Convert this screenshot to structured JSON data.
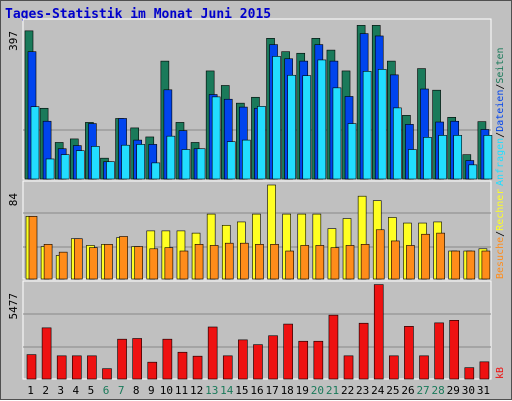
{
  "title": "Tages-Statistik im Monat Juni 2015",
  "colors": {
    "anfragen": "#1a7a5a",
    "dateien": "#0044ee",
    "seiten": "#22ddff",
    "besuche": "#ffff22",
    "rechner": "#ff8c1a",
    "kb": "#ee1111",
    "weekend": "#1a7a5a",
    "weekday": "#000000"
  },
  "chart_data": [
    {
      "type": "bar",
      "ymax_label": "397",
      "categories": [
        "1",
        "2",
        "3",
        "4",
        "5",
        "6",
        "7",
        "8",
        "9",
        "10",
        "11",
        "12",
        "13",
        "14",
        "15",
        "16",
        "17",
        "18",
        "19",
        "20",
        "21",
        "22",
        "23",
        "24",
        "25",
        "26",
        "27",
        "28",
        "29",
        "30",
        "31"
      ],
      "ylim": [
        0,
        397
      ],
      "series": [
        {
          "name": "Anfragen",
          "values": [
            377,
            180,
            93,
            102,
            144,
            53,
            154,
            130,
            107,
            300,
            144,
            93,
            275,
            238,
            193,
            208,
            358,
            324,
            320,
            358,
            328,
            275,
            391,
            391,
            300,
            162,
            281,
            226,
            157,
            62,
            146
          ]
        },
        {
          "name": "Dateien",
          "values": [
            324,
            147,
            77,
            85,
            141,
            44,
            154,
            99,
            88,
            227,
            123,
            77,
            215,
            203,
            183,
            180,
            342,
            306,
            300,
            342,
            300,
            210,
            370,
            364,
            265,
            139,
            229,
            145,
            147,
            47,
            126
          ]
        },
        {
          "name": "Seiten",
          "values": [
            184,
            51,
            62,
            72,
            83,
            44,
            86,
            88,
            41,
            109,
            75,
            77,
            209,
            95,
            99,
            185,
            312,
            264,
            263,
            303,
            232,
            141,
            274,
            279,
            181,
            75,
            106,
            111,
            111,
            36,
            111
          ]
        }
      ]
    },
    {
      "type": "bar",
      "ymax_label": "84",
      "categories": [
        "1",
        "2",
        "3",
        "4",
        "5",
        "6",
        "7",
        "8",
        "9",
        "10",
        "11",
        "12",
        "13",
        "14",
        "15",
        "16",
        "17",
        "18",
        "19",
        "20",
        "21",
        "22",
        "23",
        "24",
        "25",
        "26",
        "27",
        "28",
        "29",
        "30",
        "31"
      ],
      "ylim": [
        0,
        84
      ],
      "series": [
        {
          "name": "Besuche",
          "values": [
            56,
            29,
            21,
            36,
            30,
            31,
            37,
            29,
            43,
            43,
            43,
            41,
            58,
            48,
            51,
            58,
            84,
            58,
            58,
            58,
            45,
            54,
            74,
            70,
            55,
            50,
            50,
            51,
            25,
            25,
            27
          ]
        },
        {
          "name": "Rechner",
          "values": [
            56,
            31,
            24,
            36,
            28,
            31,
            38,
            29,
            27,
            28,
            25,
            31,
            30,
            32,
            32,
            31,
            31,
            25,
            30,
            30,
            28,
            30,
            31,
            44,
            34,
            30,
            40,
            41,
            25,
            25,
            25
          ]
        }
      ]
    },
    {
      "type": "bar",
      "ymax_label": "5477",
      "categories": [
        "1",
        "2",
        "3",
        "4",
        "5",
        "6",
        "7",
        "8",
        "9",
        "10",
        "11",
        "12",
        "13",
        "14",
        "15",
        "16",
        "17",
        "18",
        "19",
        "20",
        "21",
        "22",
        "23",
        "24",
        "25",
        "26",
        "27",
        "28",
        "29",
        "30",
        "31"
      ],
      "ylim": [
        0,
        5477
      ],
      "series": [
        {
          "name": "kB",
          "values": [
            1420,
            2980,
            1350,
            1350,
            1350,
            600,
            2320,
            2360,
            980,
            2320,
            1560,
            1330,
            3030,
            1350,
            2280,
            2000,
            2520,
            3200,
            2200,
            2200,
            3720,
            1350,
            3250,
            5500,
            1350,
            3070,
            1350,
            3270,
            3420,
            660,
            1000
          ]
        }
      ]
    }
  ],
  "legend": {
    "top": [
      "Anfragen",
      "Dateien",
      "Seiten"
    ],
    "middle": [
      "Besuche",
      "Rechner"
    ],
    "bottom": [
      "kB"
    ],
    "sep": "/"
  }
}
